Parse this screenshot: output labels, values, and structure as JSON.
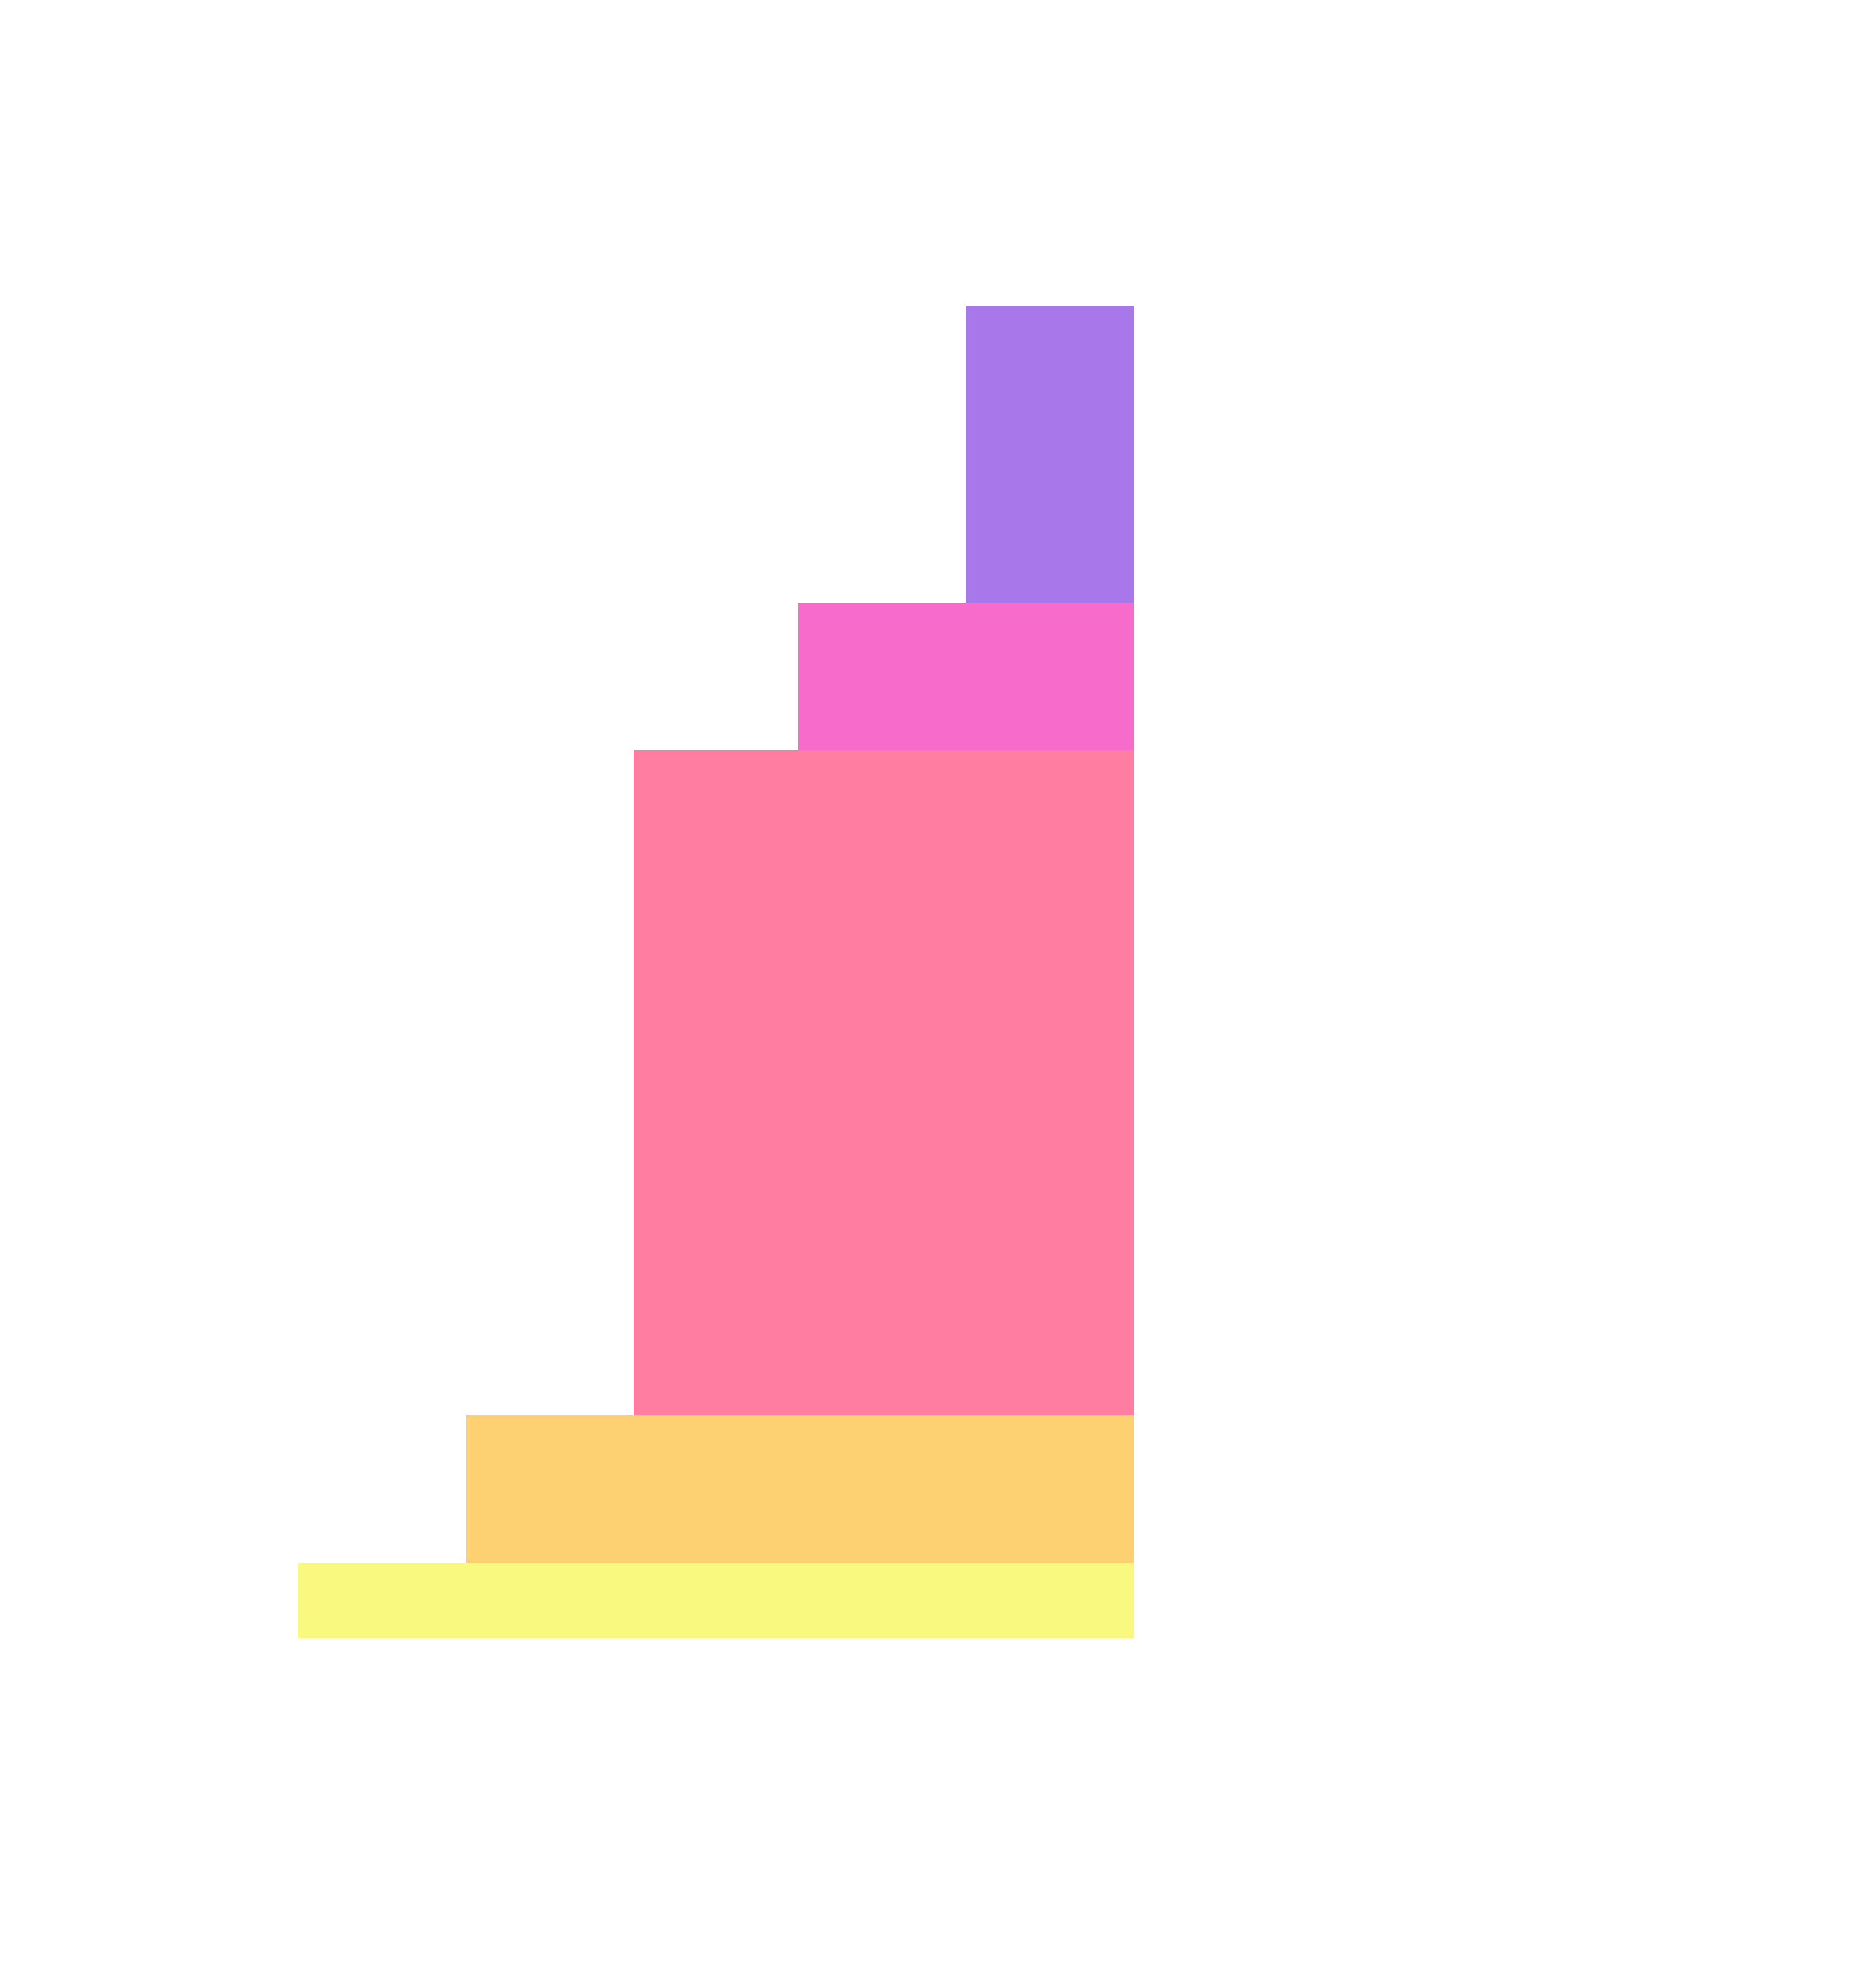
{
  "blocks": [
    {
      "name": "yellow",
      "color": "#F9F980"
    },
    {
      "name": "orange",
      "color": "#FDD072"
    },
    {
      "name": "pink",
      "color": "#FF7DA0"
    },
    {
      "name": "magenta",
      "color": "#F76CCB"
    },
    {
      "name": "purple",
      "color": "#A878EA"
    }
  ]
}
